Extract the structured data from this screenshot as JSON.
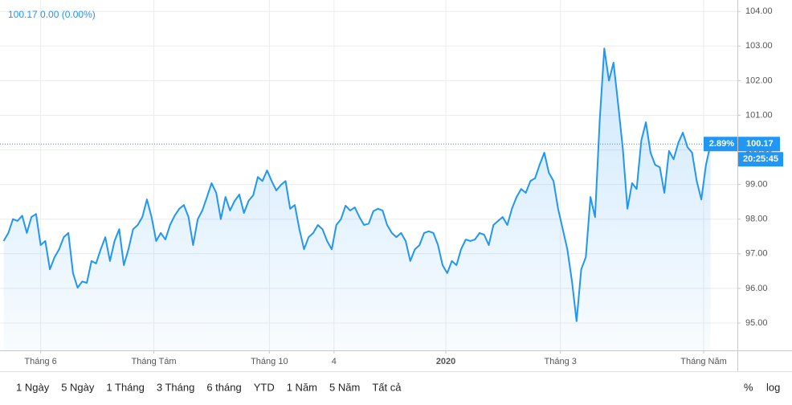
{
  "chart_data": {
    "type": "line",
    "header": "100.17  0.00 (0.00%)",
    "series": [
      {
        "name": "100.17",
        "color": "#2196f3",
        "values": [
          97.37,
          97.6,
          98.0,
          97.95,
          98.1,
          97.6,
          98.06,
          98.15,
          97.25,
          97.37,
          96.55,
          96.9,
          97.13,
          97.48,
          97.6,
          96.44,
          96.02,
          96.2,
          96.16,
          96.79,
          96.72,
          97.13,
          97.48,
          96.79,
          97.37,
          97.71,
          96.67,
          97.13,
          97.71,
          97.83,
          98.06,
          98.57,
          98.06,
          97.37,
          97.6,
          97.41,
          97.83,
          98.1,
          98.3,
          98.41,
          98.06,
          97.25,
          98.0,
          98.25,
          98.64,
          99.04,
          98.76,
          98.0,
          98.64,
          98.25,
          98.53,
          98.71,
          98.18,
          98.53,
          98.69,
          99.22,
          99.1,
          99.41,
          99.1,
          98.83,
          98.99,
          99.1,
          98.3,
          98.41,
          97.71,
          97.13,
          97.48,
          97.6,
          97.83,
          97.71,
          97.37,
          97.13,
          97.83,
          98.0,
          98.39,
          98.25,
          98.34,
          98.06,
          97.83,
          97.87,
          98.23,
          98.3,
          98.25,
          97.83,
          97.6,
          97.48,
          97.6,
          97.37,
          96.79,
          97.13,
          97.25,
          97.6,
          97.65,
          97.6,
          97.25,
          96.67,
          96.44,
          96.79,
          96.67,
          97.13,
          97.41,
          97.37,
          97.41,
          97.6,
          97.55,
          97.25,
          97.83,
          97.95,
          98.06,
          97.83,
          98.3,
          98.64,
          98.87,
          98.76,
          99.1,
          99.18,
          99.57,
          99.92,
          99.34,
          99.1,
          98.3,
          97.71,
          97.13,
          96.2,
          95.05,
          96.55,
          96.9,
          98.64,
          98.06,
          100.85,
          102.93,
          102.0,
          102.52,
          101.31,
          100.03,
          98.3,
          99.04,
          98.87,
          100.27,
          100.8,
          99.92,
          99.57,
          99.5,
          98.76,
          99.97,
          99.73,
          100.2,
          100.5,
          100.08,
          99.92,
          99.1,
          98.57,
          99.57,
          100.17
        ]
      }
    ],
    "last_value": {
      "value": 100.17,
      "label": "100.17"
    },
    "change_label": "2.89%",
    "time_label": "20:25:45",
    "xlim": [
      -0.8,
      158.8
    ],
    "xticks": [
      {
        "value": 8,
        "label": "Tháng 6"
      },
      {
        "value": 32.5,
        "label": "Tháng Tám"
      },
      {
        "value": 57.5,
        "label": "Tháng 10"
      },
      {
        "value": 71.5,
        "label": "4"
      },
      {
        "value": 95.7,
        "label": "2020"
      },
      {
        "value": 120.5,
        "label": "Tháng 3"
      },
      {
        "value": 151.5,
        "label": "Tháng Năm"
      }
    ],
    "bold_xtick": "2020",
    "ylim": [
      94.21,
      104.33
    ],
    "yticks": [
      {
        "value": 95,
        "label": "95.00"
      },
      {
        "value": 96,
        "label": "96.00"
      },
      {
        "value": 97,
        "label": "97.00"
      },
      {
        "value": 98,
        "label": "98.00"
      },
      {
        "value": 99,
        "label": "99.00"
      },
      {
        "value": 100,
        "label": "100.00"
      },
      {
        "value": 101,
        "label": "101.00"
      },
      {
        "value": 102,
        "label": "102.00"
      },
      {
        "value": 103,
        "label": "103.00"
      },
      {
        "value": 104,
        "label": "104.00"
      }
    ],
    "grid": true,
    "range_buttons": [
      "1 Ngày",
      "5 Ngày",
      "1 Tháng",
      "3 Tháng",
      "6 tháng",
      "YTD",
      "1 Năm",
      "5 Năm",
      "Tất cả"
    ],
    "scale_buttons": [
      "%",
      "log"
    ]
  }
}
